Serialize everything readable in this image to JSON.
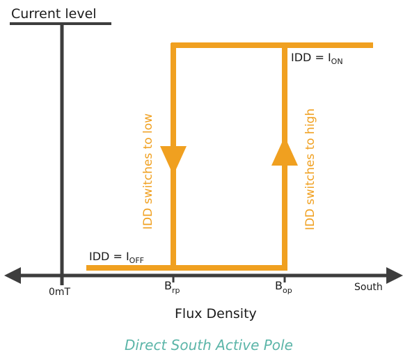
{
  "diagram": {
    "y_axis_title": "Current level",
    "x_axis_title": "Flux Density",
    "origin_label": "0mT",
    "south_label": "South",
    "b_rp": {
      "main": "B",
      "sub": "rp"
    },
    "b_op": {
      "main": "B",
      "sub": "op"
    },
    "i_on": {
      "prefix": "IDD = I",
      "sub": "ON"
    },
    "i_off": {
      "prefix": "IDD = I",
      "sub": "OFF"
    },
    "switch_low_label": "IDD switches to low",
    "switch_high_label": "IDD switches to high",
    "caption": "Direct South Active Pole",
    "colors": {
      "axis": "#3d3d3d",
      "curve": "#f0a020",
      "caption": "#5bb5a8",
      "text": "#1a1a1a"
    }
  }
}
